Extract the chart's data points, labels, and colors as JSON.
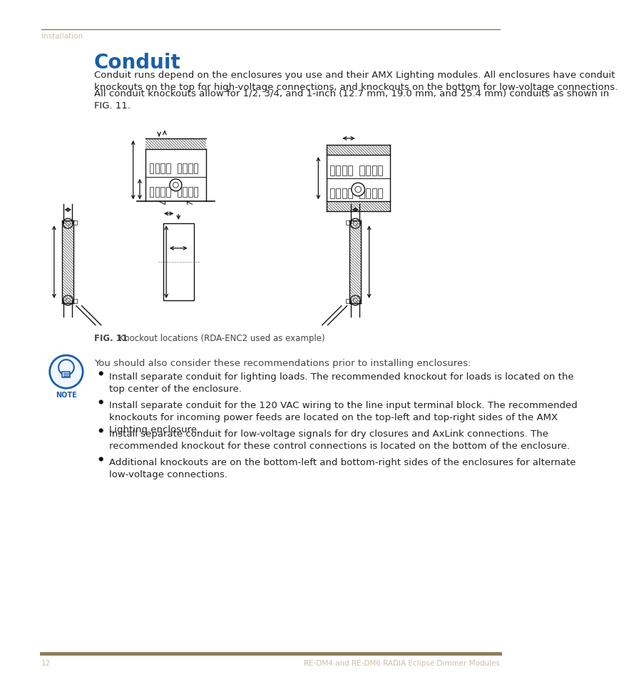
{
  "page_bg": "#ffffff",
  "header_line_color": "#8B7D5A",
  "header_text": "Installation",
  "header_text_color": "#c8bfa8",
  "footer_line_color": "#8B7D5A",
  "footer_page_num": "12",
  "footer_right_text": "RE-DM4 and RE-DM6 RADIA Eclipse Dimmer Modules",
  "footer_text_color": "#c8bfa8",
  "title": "Conduit",
  "title_color": "#1a5fa8",
  "title_fontsize": 20,
  "body_text_color": "#222222",
  "body_fontsize": 9.5,
  "fig_caption_bold": "FIG. 11",
  "fig_caption_rest": "  Knockout locations (RDA-ENC2 used as example)",
  "fig_caption_color": "#444444",
  "fig_caption_fontsize": 8.5,
  "note_text_color": "#444444",
  "note_fontsize": 9.5,
  "bullet_items": [
    "Install separate conduit for lighting loads. The recommended knockout for loads is located on the\ntop center of the enclosure.",
    "Install separate conduit for the 120 VAC wiring to the line input terminal block. The recommended\nknockouts for incoming power feeds are located on the top-left and top-right sides of the AMX\nLighting enclosure.",
    "Install separate conduit for low-voltage signals for dry closures and AxLink connections. The\nrecommended knockout for these control connections is located on the bottom of the enclosure.",
    "Additional knockouts are on the bottom-left and bottom-right sides of the enclosures for alternate\nlow-voltage connections."
  ],
  "paragraph1": "Conduit runs depend on the enclosures you use and their AMX Lighting modules. All enclosures have conduit\nknockouts on the top for high-voltage connections, and knockouts on the bottom for low-voltage connections.",
  "paragraph2": "All conduit knockouts allow for 1/2, 3/4, and 1-inch (12.7 mm, 19.0 mm, and 25.4 mm) conduits as shown in\nFIG. 11.",
  "note_intro": "You should also consider these recommendations prior to installing enclosures:"
}
